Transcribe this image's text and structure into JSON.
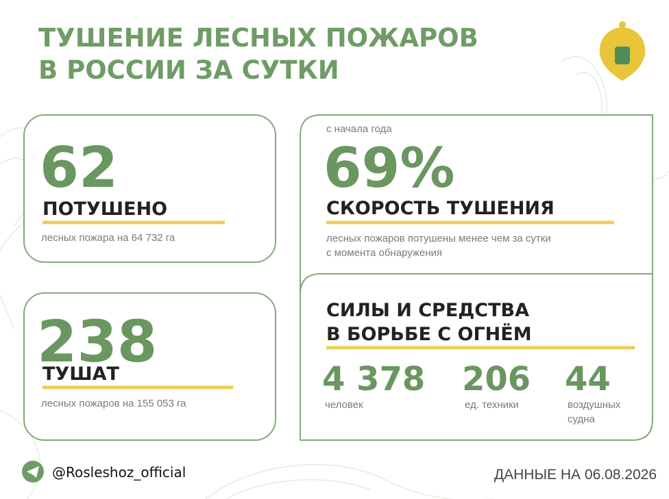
{
  "header": {
    "title_lines": [
      "ТУШЕНИЕ ЛЕСНЫХ ПОЖАРОВ",
      "В РОССИИ ЗА СУТКИ"
    ]
  },
  "extinguished": {
    "number": "62",
    "label": "ПОТУШЕНО",
    "description": "лесных пожара на 64 732 га"
  },
  "active": {
    "number": "238",
    "label": "ТУШАТ",
    "description": "лесных пожаров на 155 053 га"
  },
  "speed": {
    "note": "с начала года",
    "number": "69%",
    "label": "СКОРОСТЬ ТУШЕНИЯ",
    "description_lines": [
      "лесных пожаров потушены менее чем за сутки",
      "с момента обнаружения"
    ]
  },
  "forces": {
    "title_lines": [
      "СИЛЫ И СРЕДСТВА",
      "В БОРЬБЕ С ОГНЁМ"
    ],
    "items": [
      {
        "value": "4 378",
        "label_lines": [
          "человек"
        ]
      },
      {
        "value": "206",
        "label_lines": [
          "ед. техники"
        ]
      },
      {
        "value": "44",
        "label_lines": [
          "воздушных",
          "судна"
        ]
      }
    ]
  },
  "footer": {
    "handle": "@Rosleshoz_official",
    "date": "ДАННЫЕ НА 06.08.2026"
  }
}
